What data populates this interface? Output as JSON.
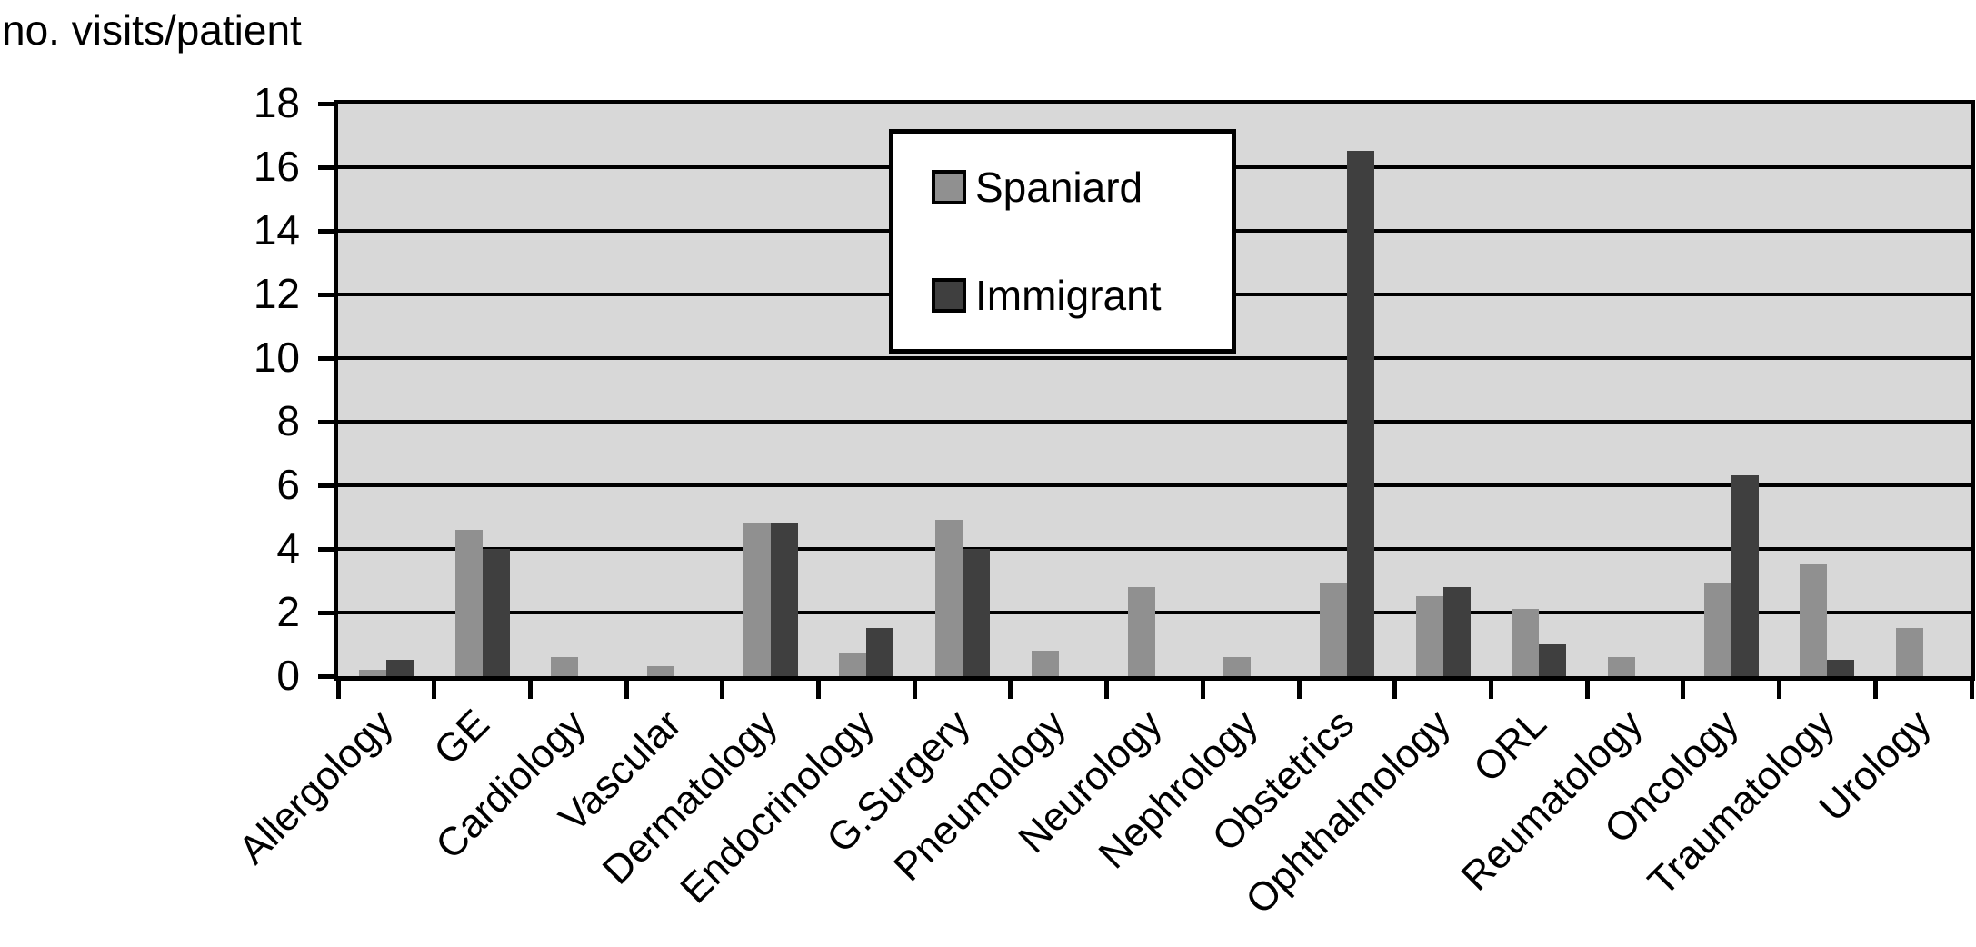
{
  "page": {
    "title": "no. visits/patient"
  },
  "legend": {
    "items": [
      {
        "label": "Spaniard"
      },
      {
        "label": "Immigrant"
      }
    ]
  },
  "chart_data": {
    "type": "bar",
    "title": "no. visits/patient",
    "categories": [
      "Allergology",
      "GE",
      "Cardiology",
      "Vascular",
      "Dermatology",
      "Endocrinology",
      "G.Surgery",
      "Pneumology",
      "Neurology",
      "Nephrology",
      "Obstetrics",
      "Ophthalmology",
      "ORL",
      "Reumatology",
      "Oncology",
      "Traumatology",
      "Urology"
    ],
    "series": [
      {
        "name": "Spaniard",
        "color": "#909090",
        "values": [
          0.2,
          4.6,
          0.6,
          0.3,
          4.8,
          0.7,
          4.9,
          0.8,
          2.8,
          0.6,
          2.9,
          2.5,
          2.1,
          0.6,
          2.9,
          3.5,
          1.5
        ]
      },
      {
        "name": "Immigrant",
        "color": "#3F3F3F",
        "values": [
          0.5,
          4.0,
          0,
          0,
          4.8,
          1.5,
          4.0,
          0,
          0,
          0,
          16.5,
          2.8,
          1.0,
          0,
          6.3,
          0.5,
          0
        ]
      }
    ],
    "ylabel": "no. visits/patient",
    "xlabel": "",
    "ylim": [
      0,
      18
    ],
    "ytick_step": 2,
    "y_tick_labels": [
      "0",
      "2",
      "4",
      "6",
      "8",
      "10",
      "12",
      "14",
      "16",
      "18"
    ],
    "grid": "horizontal",
    "legend_position": "top-center",
    "plot_background": "#D8D8D8",
    "axis_color": "#000000",
    "page_background": "#FFFFFF"
  }
}
